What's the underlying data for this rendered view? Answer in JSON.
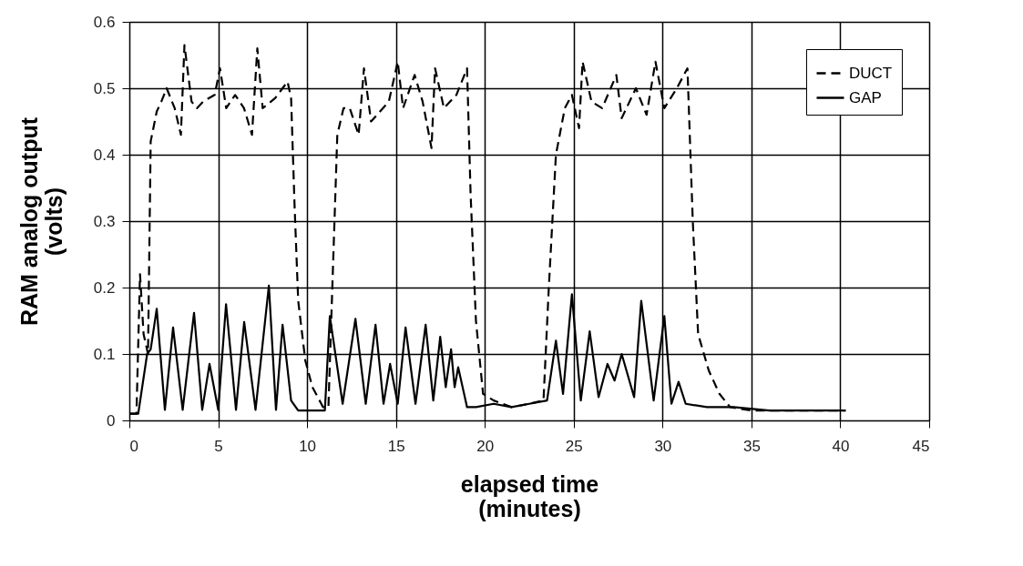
{
  "chart_data": {
    "type": "line",
    "xlabel": "elapsed time\n(minutes)",
    "ylabel": "RAM  analog output\n(volts)",
    "xlim": [
      0,
      45
    ],
    "xticks": [
      0,
      5,
      10,
      15,
      20,
      25,
      30,
      35,
      40,
      45
    ],
    "ylim": [
      0,
      0.6
    ],
    "yticks": [
      0,
      0.1,
      0.2,
      0.3,
      0.4,
      0.5,
      0.6
    ],
    "grid": true,
    "legend": "top right",
    "series": [
      {
        "name": "DUCT",
        "color": "#000000",
        "line_style": "dashed",
        "x": [
          0,
          0.4,
          0.6,
          0.8,
          1.05,
          1.2,
          1.54,
          1.8,
          2.1,
          2.55,
          2.9,
          3.1,
          3.5,
          3.8,
          4.15,
          4.8,
          5.1,
          5.45,
          5.95,
          6.45,
          6.9,
          7.2,
          7.5,
          8.2,
          8.9,
          9.1,
          9.3,
          9.5,
          9.9,
          10.3,
          10.9,
          11.2,
          11.7,
          12.05,
          12.4,
          12.9,
          13.2,
          13.6,
          14.6,
          15.1,
          15.4,
          16.05,
          16.5,
          17.0,
          17.2,
          17.7,
          18.4,
          19.0,
          19.2,
          19.5,
          19.9,
          20.5,
          21.5,
          22.5,
          23.3,
          23.6,
          24.0,
          24.5,
          24.9,
          25.3,
          25.5,
          26.0,
          26.6,
          27.4,
          27.7,
          28.5,
          29.1,
          29.6,
          30.1,
          30.8,
          31.4,
          31.7,
          32.0,
          32.6,
          33.2,
          33.8,
          35.0,
          37.0,
          39.0,
          40.3
        ],
        "values": [
          0.01,
          0.01,
          0.22,
          0.13,
          0.1,
          0.42,
          0.465,
          0.48,
          0.5,
          0.47,
          0.43,
          0.565,
          0.48,
          0.47,
          0.48,
          0.49,
          0.53,
          0.47,
          0.49,
          0.47,
          0.43,
          0.56,
          0.47,
          0.485,
          0.51,
          0.485,
          0.32,
          0.18,
          0.09,
          0.05,
          0.02,
          0.02,
          0.43,
          0.47,
          0.47,
          0.43,
          0.53,
          0.45,
          0.48,
          0.54,
          0.47,
          0.52,
          0.48,
          0.41,
          0.53,
          0.47,
          0.49,
          0.53,
          0.34,
          0.15,
          0.04,
          0.03,
          0.02,
          0.025,
          0.03,
          0.2,
          0.4,
          0.47,
          0.49,
          0.44,
          0.54,
          0.48,
          0.47,
          0.52,
          0.455,
          0.5,
          0.46,
          0.54,
          0.47,
          0.5,
          0.53,
          0.3,
          0.13,
          0.075,
          0.04,
          0.02,
          0.015,
          0.015,
          0.015,
          0.015
        ]
      },
      {
        "name": "GAP",
        "color": "#000000",
        "line_style": "solid",
        "x": [
          0,
          0.5,
          1.0,
          1.2,
          1.54,
          2.0,
          2.46,
          3.0,
          3.64,
          4.1,
          4.51,
          5.0,
          5.44,
          6.0,
          6.46,
          7.1,
          7.85,
          8.25,
          8.62,
          9.1,
          9.5,
          10.5,
          11.0,
          11.28,
          12.0,
          12.72,
          13.3,
          13.85,
          14.3,
          14.67,
          15.1,
          15.54,
          16.1,
          16.67,
          17.1,
          17.49,
          17.8,
          18.1,
          18.3,
          18.5,
          19.0,
          19.5,
          20.5,
          21.5,
          22.5,
          23.5,
          24.0,
          24.4,
          24.9,
          25.4,
          25.9,
          26.4,
          26.9,
          27.3,
          27.7,
          28.4,
          28.8,
          29.5,
          30.1,
          30.5,
          30.9,
          31.3,
          32.5,
          34.0,
          36.0,
          38.0,
          40.3
        ],
        "values": [
          0.01,
          0.01,
          0.1,
          0.107,
          0.168,
          0.016,
          0.14,
          0.016,
          0.162,
          0.016,
          0.085,
          0.016,
          0.175,
          0.016,
          0.148,
          0.016,
          0.203,
          0.016,
          0.144,
          0.03,
          0.015,
          0.015,
          0.015,
          0.157,
          0.025,
          0.153,
          0.025,
          0.144,
          0.025,
          0.085,
          0.025,
          0.14,
          0.025,
          0.144,
          0.03,
          0.126,
          0.05,
          0.107,
          0.05,
          0.08,
          0.02,
          0.02,
          0.025,
          0.02,
          0.025,
          0.03,
          0.12,
          0.04,
          0.19,
          0.03,
          0.134,
          0.035,
          0.085,
          0.06,
          0.1,
          0.035,
          0.18,
          0.03,
          0.157,
          0.025,
          0.058,
          0.025,
          0.02,
          0.02,
          0.015,
          0.015,
          0.015
        ]
      }
    ]
  }
}
